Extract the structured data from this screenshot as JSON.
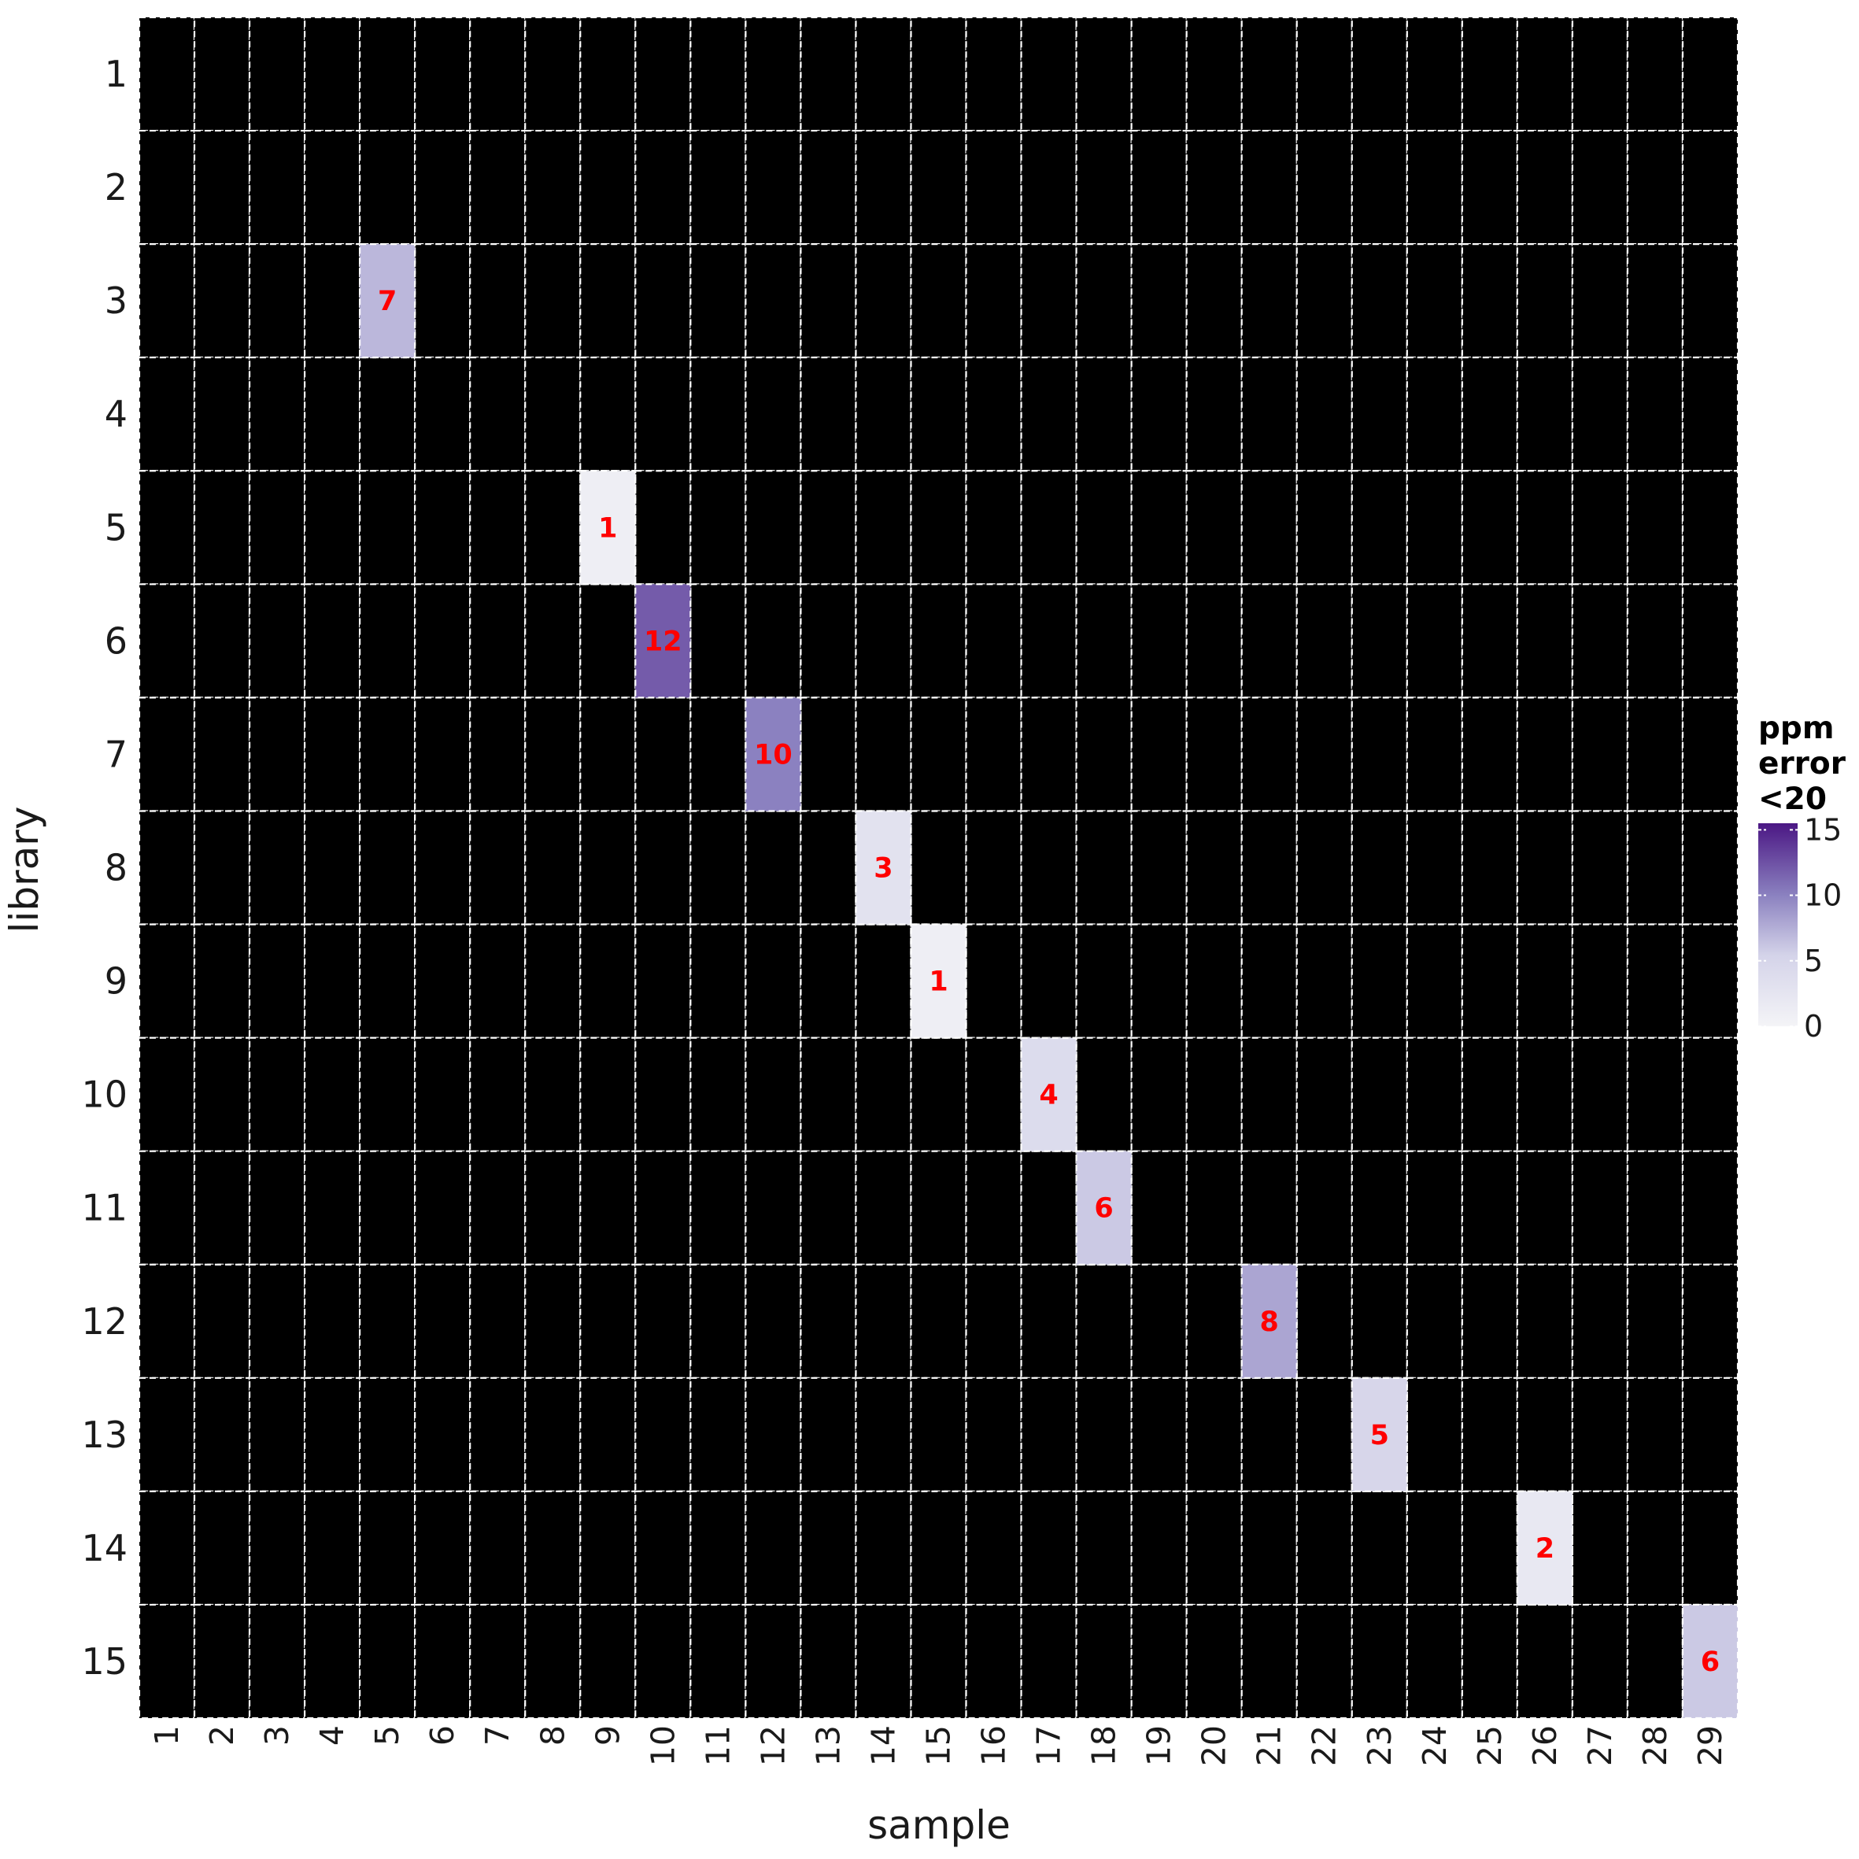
{
  "chart_data": {
    "type": "heatmap",
    "xlabel": "sample",
    "ylabel": "library",
    "x": [
      1,
      2,
      3,
      4,
      5,
      6,
      7,
      8,
      9,
      10,
      11,
      12,
      13,
      14,
      15,
      16,
      17,
      18,
      19,
      20,
      21,
      22,
      23,
      24,
      25,
      26,
      27,
      28,
      29
    ],
    "y": [
      1,
      2,
      3,
      4,
      5,
      6,
      7,
      8,
      9,
      10,
      11,
      12,
      13,
      14,
      15
    ],
    "cells": [
      {
        "sample": 5,
        "library": 3,
        "value": 7
      },
      {
        "sample": 9,
        "library": 5,
        "value": 1
      },
      {
        "sample": 10,
        "library": 6,
        "value": 12
      },
      {
        "sample": 12,
        "library": 7,
        "value": 10
      },
      {
        "sample": 14,
        "library": 8,
        "value": 3
      },
      {
        "sample": 15,
        "library": 9,
        "value": 1
      },
      {
        "sample": 17,
        "library": 10,
        "value": 4
      },
      {
        "sample": 18,
        "library": 11,
        "value": 6
      },
      {
        "sample": 21,
        "library": 12,
        "value": 8
      },
      {
        "sample": 23,
        "library": 13,
        "value": 5
      },
      {
        "sample": 26,
        "library": 14,
        "value": 2
      },
      {
        "sample": 29,
        "library": 15,
        "value": 6
      }
    ],
    "empty_cell_color": "#000000",
    "grid_line_color": "#ffffff",
    "grid_line_style": "dashed",
    "label_color": "#ff0000",
    "legend": {
      "title_lines": [
        "ppm",
        "error",
        "<20"
      ],
      "range": [
        0,
        15.5
      ],
      "ticks": [
        0,
        5,
        10,
        15
      ],
      "color_low": "#f4f4f7",
      "color_high": "#4b1784",
      "position": "right"
    }
  }
}
